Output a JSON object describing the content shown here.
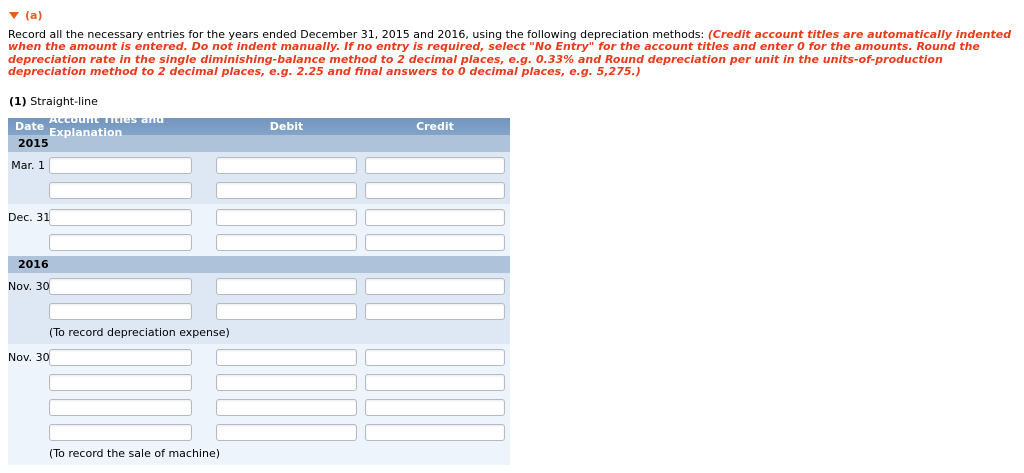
{
  "colors": {
    "accent_orange": "#e2601a",
    "instruction_red": "#e83a1c",
    "table_header_top": "#7295bf",
    "table_header_bottom": "#84a4c9",
    "table_header_text": "#ffffff",
    "year_row_bg": "#aec3da",
    "group_bg_dark": "#dde8f4",
    "group_bg_light": "#eef4fb",
    "input_border": "#b5bac1"
  },
  "section_header": {
    "icon": "collapse-triangle",
    "label": "(a)"
  },
  "instructions": {
    "intro": "Record all the necessary entries for the years ended December 31, 2015 and 2016, using the following depreciation methods: ",
    "emphasis": "(Credit account titles are automatically indented when the amount is entered. Do not indent manually. If no entry is required, select \"No Entry\" for the account titles and enter 0 for the amounts. Round the depreciation rate in the single diminishing-balance method to 2 decimal places, e.g. 0.33% and Round depreciation per unit in the units-of-production depreciation method to 2 decimal places, e.g. 2.25 and final answers to 0 decimal places, e.g. 5,275.)"
  },
  "method": {
    "number": "(1)",
    "name": "Straight-line"
  },
  "journal": {
    "columns": [
      "Date",
      "Account Titles and Explanation",
      "Debit",
      "Credit"
    ],
    "input_value": "",
    "groups": [
      {
        "type": "year",
        "label": "2015"
      },
      {
        "type": "entry",
        "date": "Mar. 1",
        "rows": 2,
        "note": null
      },
      {
        "type": "entry",
        "date": "Dec. 31",
        "rows": 2,
        "note": null
      },
      {
        "type": "year",
        "label": "2016"
      },
      {
        "type": "entry",
        "date": "Nov. 30",
        "rows": 2,
        "note": "(To record depreciation expense)"
      },
      {
        "type": "entry",
        "date": "Nov. 30",
        "rows": 4,
        "note": "(To record the sale of machine)"
      }
    ]
  }
}
